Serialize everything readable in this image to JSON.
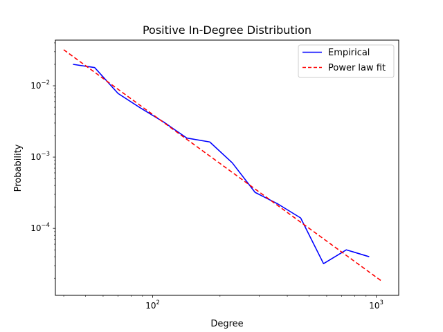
{
  "chart_data": {
    "type": "line",
    "title": "Positive In-Degree Distribution",
    "xlabel": "Degree",
    "ylabel": "Probability",
    "xscale": "log",
    "yscale": "log",
    "xlim": [
      36.7,
      1260
    ],
    "ylim": [
      1.15e-05,
      0.0437
    ],
    "x_ticks": [
      {
        "value": 100,
        "base": "10",
        "exp": "2"
      },
      {
        "value": 1000,
        "base": "10",
        "exp": "3"
      }
    ],
    "y_ticks": [
      {
        "value": 0.0001,
        "base": "10",
        "exp": "−4"
      },
      {
        "value": 0.001,
        "base": "10",
        "exp": "−3"
      },
      {
        "value": 0.01,
        "base": "10",
        "exp": "−2"
      }
    ],
    "grid": false,
    "legend_position": "top-right",
    "series": [
      {
        "name": "Empirical",
        "color": "#0000ff",
        "style": "solid",
        "x": [
          44,
          55,
          70,
          88,
          112,
          142,
          180,
          227,
          287,
          363,
          459,
          581,
          735,
          930
        ],
        "y": [
          0.02,
          0.018,
          0.0078,
          0.0049,
          0.0031,
          0.00185,
          0.00163,
          0.00083,
          0.00032,
          0.00022,
          0.00014,
          3.2e-05,
          5e-05,
          4e-05
        ]
      },
      {
        "name": "Power law fit",
        "color": "#ff0000",
        "style": "dashed",
        "x": [
          40,
          1050
        ],
        "y": [
          0.032,
          1.85e-05
        ]
      }
    ]
  }
}
